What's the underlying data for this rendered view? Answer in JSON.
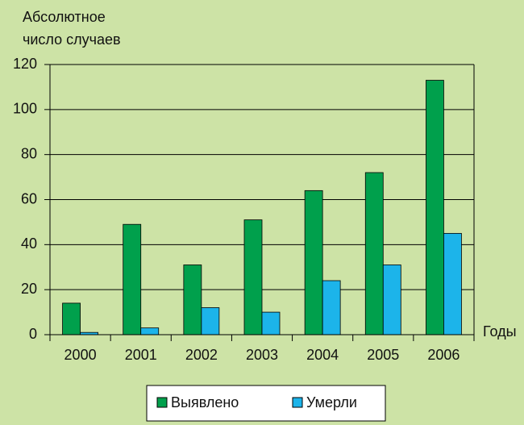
{
  "chart_data": {
    "type": "bar",
    "y_label": [
      "Абсолютное",
      "число случаев"
    ],
    "x_label": "Годы",
    "categories": [
      "2000",
      "2001",
      "2002",
      "2003",
      "2004",
      "2005",
      "2006"
    ],
    "series": [
      {
        "name": "Выявлено",
        "color": "#00a04c",
        "values": [
          14,
          49,
          31,
          51,
          64,
          72,
          113
        ]
      },
      {
        "name": "Умерли",
        "color": "#1cb4ea",
        "values": [
          1,
          3,
          12,
          10,
          24,
          31,
          45
        ]
      }
    ],
    "ylim": [
      0,
      120
    ],
    "yticks": [
      0,
      20,
      40,
      60,
      80,
      100,
      120
    ],
    "grid": true
  }
}
